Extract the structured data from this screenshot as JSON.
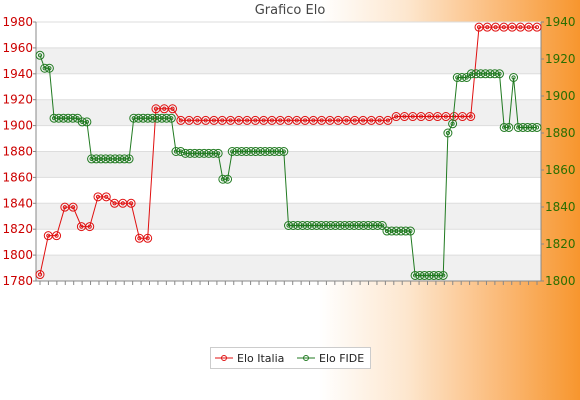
{
  "chart_data": {
    "type": "line",
    "title": "Grafico Elo",
    "colors": {
      "italia": "#e01010",
      "fide": "#217a21",
      "left_axis_text": "#cc0000",
      "right_axis_text": "#2a6e00"
    },
    "y_left": {
      "min": 1780,
      "max": 1980,
      "ticks": [
        "1780",
        "1800",
        "1820",
        "1840",
        "1860",
        "1880",
        "1900",
        "1920",
        "1940",
        "1960",
        "1980"
      ]
    },
    "y_right": {
      "min": 1800,
      "max": 1940,
      "ticks": [
        "1800",
        "1820",
        "1840",
        "1860",
        "1880",
        "1900",
        "1920",
        "1940"
      ]
    },
    "series": [
      {
        "name": "Elo Italia",
        "axis": "left",
        "values": [
          1785,
          1815,
          1815,
          1837,
          1837,
          1822,
          1822,
          1845,
          1845,
          1840,
          1840,
          1840,
          1813,
          1813,
          1913,
          1913,
          1913,
          1904,
          1904,
          1904,
          1904,
          1904,
          1904,
          1904,
          1904,
          1904,
          1904,
          1904,
          1904,
          1904,
          1904,
          1904,
          1904,
          1904,
          1904,
          1904,
          1904,
          1904,
          1904,
          1904,
          1904,
          1904,
          1904,
          1907,
          1907,
          1907,
          1907,
          1907,
          1907,
          1907,
          1907,
          1907,
          1907,
          1976,
          1976,
          1976,
          1976,
          1976,
          1976,
          1976,
          1976
        ]
      },
      {
        "name": "Elo FIDE",
        "axis": "right",
        "values": [
          1922,
          1915,
          1915,
          1888,
          1888,
          1888,
          1888,
          1888,
          1888,
          1886,
          1886,
          1866,
          1866,
          1866,
          1866,
          1866,
          1866,
          1866,
          1866,
          1866,
          1888,
          1888,
          1888,
          1888,
          1888,
          1888,
          1888,
          1888,
          1888,
          1870,
          1870,
          1869,
          1869,
          1869,
          1869,
          1869,
          1869,
          1869,
          1869,
          1855,
          1855,
          1870,
          1870,
          1870,
          1870,
          1870,
          1870,
          1870,
          1870,
          1870,
          1870,
          1870,
          1870,
          1830,
          1830,
          1830,
          1830,
          1830,
          1830,
          1830,
          1830,
          1830,
          1830,
          1830,
          1830,
          1830,
          1830,
          1830,
          1830,
          1830,
          1830,
          1830,
          1830,
          1830,
          1827,
          1827,
          1827,
          1827,
          1827,
          1827,
          1803,
          1803,
          1803,
          1803,
          1803,
          1803,
          1803,
          1880,
          1885,
          1910,
          1910,
          1910,
          1912,
          1912,
          1912,
          1912,
          1912,
          1912,
          1912,
          1883,
          1883,
          1910,
          1883,
          1883,
          1883,
          1883,
          1883
        ]
      }
    ],
    "legend_position": "bottom"
  }
}
